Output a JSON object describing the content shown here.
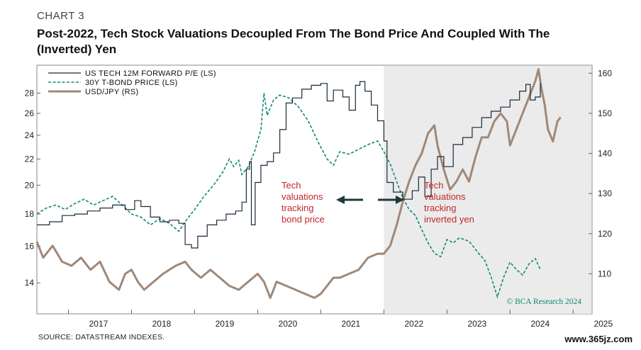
{
  "header": {
    "chart_label": "CHART 3",
    "title": "Post-2022, Tech Stock Valuations Decoupled From The Bond Price And Coupled With The (Inverted) Yen"
  },
  "footer": {
    "source": "SOURCE: DATASTREAM INDEXES.",
    "watermark": "www.365jz.com"
  },
  "colors": {
    "tech_pe": "#1a2a3a",
    "bond": "#0e8a73",
    "usdjpy": "#a08878",
    "shade": "#ebebeb",
    "annotation": "#c0282d",
    "arrow": "#1f3a3a"
  },
  "chart_data": {
    "type": "line",
    "title": "Post-2022, Tech Stock Valuations Decoupled From The Bond Price And Coupled With The (Inverted) Yen",
    "x_ticks": [
      "2017",
      "2018",
      "2019",
      "2020",
      "2021",
      "2022",
      "2023",
      "2024",
      "2025"
    ],
    "xlim": [
      2016.5,
      2025.3
    ],
    "left_axis": {
      "ticks": [
        "14",
        "16",
        "18",
        "20",
        "22",
        "24",
        "26",
        "28"
      ],
      "ylim": [
        12.5,
        31
      ],
      "scale": "log"
    },
    "right_axis": {
      "ticks": [
        "110",
        "120",
        "130",
        "140",
        "150",
        "160"
      ],
      "ylim": [
        100,
        162
      ]
    },
    "shaded_region": {
      "from": 2022.0,
      "to": 2025.3
    },
    "legend": [
      "US TECH 12M FORWARD P/E (LS)",
      "30Y T-BOND PRICE (LS)",
      "USD/JPY (RS)"
    ],
    "annotations": {
      "left": [
        "Tech",
        "valuations",
        "tracking",
        "bond price"
      ],
      "right": [
        "Tech",
        "valuations",
        "tracking",
        "inverted yen"
      ]
    },
    "credit": "© BCA Research 2024",
    "series": [
      {
        "name": "US TECH 12M FORWARD P/E (LS)",
        "axis": "left",
        "style": "thin-solid",
        "points": [
          [
            2016.5,
            17.3
          ],
          [
            2016.7,
            17.5
          ],
          [
            2016.9,
            17.9
          ],
          [
            2017.1,
            18.0
          ],
          [
            2017.3,
            18.2
          ],
          [
            2017.5,
            18.4
          ],
          [
            2017.7,
            18.6
          ],
          [
            2017.9,
            18.3
          ],
          [
            2018.05,
            18.9
          ],
          [
            2018.15,
            18.5
          ],
          [
            2018.3,
            17.8
          ],
          [
            2018.45,
            17.5
          ],
          [
            2018.6,
            17.6
          ],
          [
            2018.75,
            17.4
          ],
          [
            2018.85,
            16.1
          ],
          [
            2018.95,
            15.9
          ],
          [
            2019.05,
            16.6
          ],
          [
            2019.2,
            17.3
          ],
          [
            2019.35,
            17.6
          ],
          [
            2019.5,
            18.0
          ],
          [
            2019.65,
            18.2
          ],
          [
            2019.75,
            18.8
          ],
          [
            2019.82,
            21.2
          ],
          [
            2019.87,
            21.8
          ],
          [
            2019.9,
            17.3
          ],
          [
            2019.96,
            20.2
          ],
          [
            2020.05,
            21.5
          ],
          [
            2020.15,
            21.8
          ],
          [
            2020.25,
            22.5
          ],
          [
            2020.35,
            24.5
          ],
          [
            2020.45,
            27.0
          ],
          [
            2020.55,
            27.5
          ],
          [
            2020.7,
            28.4
          ],
          [
            2020.85,
            28.8
          ],
          [
            2021.0,
            29.0
          ],
          [
            2021.1,
            27.2
          ],
          [
            2021.2,
            28.3
          ],
          [
            2021.35,
            27.6
          ],
          [
            2021.45,
            26.3
          ],
          [
            2021.55,
            28.8
          ],
          [
            2021.62,
            29.2
          ],
          [
            2021.7,
            28.2
          ],
          [
            2021.8,
            26.8
          ],
          [
            2021.9,
            25.3
          ],
          [
            2022.0,
            23.5
          ],
          [
            2022.05,
            20.2
          ],
          [
            2022.15,
            19.5
          ],
          [
            2022.3,
            19.0
          ],
          [
            2022.45,
            19.6
          ],
          [
            2022.55,
            20.6
          ],
          [
            2022.65,
            19.2
          ],
          [
            2022.75,
            21.2
          ],
          [
            2022.85,
            22.2
          ],
          [
            2022.95,
            21.4
          ],
          [
            2023.1,
            23.2
          ],
          [
            2023.25,
            23.8
          ],
          [
            2023.4,
            24.7
          ],
          [
            2023.55,
            25.6
          ],
          [
            2023.7,
            26.2
          ],
          [
            2023.85,
            26.6
          ],
          [
            2024.0,
            27.3
          ],
          [
            2024.15,
            28.2
          ],
          [
            2024.25,
            28.9
          ],
          [
            2024.32,
            27.3
          ],
          [
            2024.4,
            27.6
          ],
          [
            2024.48,
            29.0
          ]
        ]
      },
      {
        "name": "30Y T-BOND PRICE (LS)",
        "axis": "left",
        "style": "dashed",
        "points": [
          [
            2016.5,
            18.0
          ],
          [
            2016.65,
            18.4
          ],
          [
            2016.8,
            18.6
          ],
          [
            2016.95,
            18.3
          ],
          [
            2017.1,
            18.7
          ],
          [
            2017.25,
            19.0
          ],
          [
            2017.4,
            18.6
          ],
          [
            2017.55,
            18.9
          ],
          [
            2017.7,
            19.2
          ],
          [
            2017.85,
            18.6
          ],
          [
            2018.0,
            18.0
          ],
          [
            2018.15,
            17.8
          ],
          [
            2018.3,
            17.3
          ],
          [
            2018.45,
            17.7
          ],
          [
            2018.6,
            17.4
          ],
          [
            2018.75,
            16.9
          ],
          [
            2018.85,
            17.5
          ],
          [
            2019.0,
            18.3
          ],
          [
            2019.15,
            19.2
          ],
          [
            2019.3,
            20.0
          ],
          [
            2019.45,
            21.0
          ],
          [
            2019.55,
            22.0
          ],
          [
            2019.62,
            21.4
          ],
          [
            2019.7,
            21.9
          ],
          [
            2019.75,
            20.8
          ],
          [
            2019.85,
            21.4
          ],
          [
            2019.95,
            22.6
          ],
          [
            2020.05,
            24.5
          ],
          [
            2020.1,
            28.0
          ],
          [
            2020.15,
            25.8
          ],
          [
            2020.25,
            27.3
          ],
          [
            2020.35,
            27.8
          ],
          [
            2020.5,
            27.5
          ],
          [
            2020.65,
            26.6
          ],
          [
            2020.8,
            25.3
          ],
          [
            2020.95,
            23.5
          ],
          [
            2021.1,
            22.0
          ],
          [
            2021.2,
            21.5
          ],
          [
            2021.3,
            22.6
          ],
          [
            2021.45,
            22.4
          ],
          [
            2021.6,
            22.8
          ],
          [
            2021.75,
            23.2
          ],
          [
            2021.9,
            23.5
          ],
          [
            2022.0,
            22.6
          ],
          [
            2022.1,
            21.6
          ],
          [
            2022.2,
            20.3
          ],
          [
            2022.3,
            19.1
          ],
          [
            2022.4,
            18.3
          ],
          [
            2022.5,
            17.9
          ],
          [
            2022.6,
            17.0
          ],
          [
            2022.7,
            16.2
          ],
          [
            2022.8,
            15.6
          ],
          [
            2022.9,
            15.4
          ],
          [
            2023.0,
            16.4
          ],
          [
            2023.1,
            16.2
          ],
          [
            2023.2,
            16.5
          ],
          [
            2023.35,
            16.3
          ],
          [
            2023.5,
            15.6
          ],
          [
            2023.6,
            15.2
          ],
          [
            2023.7,
            14.3
          ],
          [
            2023.8,
            13.3
          ],
          [
            2023.9,
            14.3
          ],
          [
            2024.0,
            15.1
          ],
          [
            2024.1,
            14.7
          ],
          [
            2024.2,
            14.4
          ],
          [
            2024.3,
            15.0
          ],
          [
            2024.4,
            15.3
          ],
          [
            2024.48,
            14.7
          ]
        ]
      },
      {
        "name": "USD/JPY (RS)",
        "axis": "right",
        "style": "thick-solid",
        "points": [
          [
            2016.5,
            118
          ],
          [
            2016.6,
            114
          ],
          [
            2016.75,
            117
          ],
          [
            2016.9,
            113
          ],
          [
            2017.05,
            112
          ],
          [
            2017.2,
            114
          ],
          [
            2017.35,
            111
          ],
          [
            2017.5,
            113
          ],
          [
            2017.65,
            108
          ],
          [
            2017.8,
            106
          ],
          [
            2017.9,
            110
          ],
          [
            2018.0,
            111
          ],
          [
            2018.1,
            108
          ],
          [
            2018.2,
            106
          ],
          [
            2018.35,
            108
          ],
          [
            2018.5,
            110
          ],
          [
            2018.6,
            111
          ],
          [
            2018.7,
            112
          ],
          [
            2018.85,
            113
          ],
          [
            2018.95,
            111
          ],
          [
            2019.1,
            109
          ],
          [
            2019.25,
            111
          ],
          [
            2019.4,
            109
          ],
          [
            2019.55,
            107
          ],
          [
            2019.7,
            106
          ],
          [
            2019.85,
            108
          ],
          [
            2020.0,
            110
          ],
          [
            2020.1,
            108
          ],
          [
            2020.2,
            104
          ],
          [
            2020.3,
            108
          ],
          [
            2020.45,
            107
          ],
          [
            2020.6,
            106
          ],
          [
            2020.75,
            105
          ],
          [
            2020.9,
            104
          ],
          [
            2021.0,
            105
          ],
          [
            2021.1,
            107
          ],
          [
            2021.2,
            109
          ],
          [
            2021.3,
            109
          ],
          [
            2021.45,
            110
          ],
          [
            2021.6,
            111
          ],
          [
            2021.75,
            114
          ],
          [
            2021.9,
            115
          ],
          [
            2022.0,
            115
          ],
          [
            2022.1,
            117
          ],
          [
            2022.2,
            122
          ],
          [
            2022.3,
            128
          ],
          [
            2022.4,
            133
          ],
          [
            2022.5,
            137
          ],
          [
            2022.6,
            140
          ],
          [
            2022.7,
            145
          ],
          [
            2022.8,
            147
          ],
          [
            2022.85,
            142
          ],
          [
            2022.95,
            136
          ],
          [
            2023.05,
            131
          ],
          [
            2023.15,
            133
          ],
          [
            2023.25,
            136
          ],
          [
            2023.35,
            133
          ],
          [
            2023.45,
            139
          ],
          [
            2023.55,
            144
          ],
          [
            2023.65,
            144
          ],
          [
            2023.75,
            148
          ],
          [
            2023.85,
            150
          ],
          [
            2023.95,
            148
          ],
          [
            2024.0,
            142
          ],
          [
            2024.1,
            146
          ],
          [
            2024.2,
            150
          ],
          [
            2024.3,
            154
          ],
          [
            2024.4,
            158
          ],
          [
            2024.45,
            161
          ],
          [
            2024.5,
            156
          ],
          [
            2024.55,
            152
          ],
          [
            2024.6,
            146
          ],
          [
            2024.68,
            143
          ],
          [
            2024.75,
            148
          ],
          [
            2024.8,
            149
          ]
        ]
      }
    ]
  }
}
